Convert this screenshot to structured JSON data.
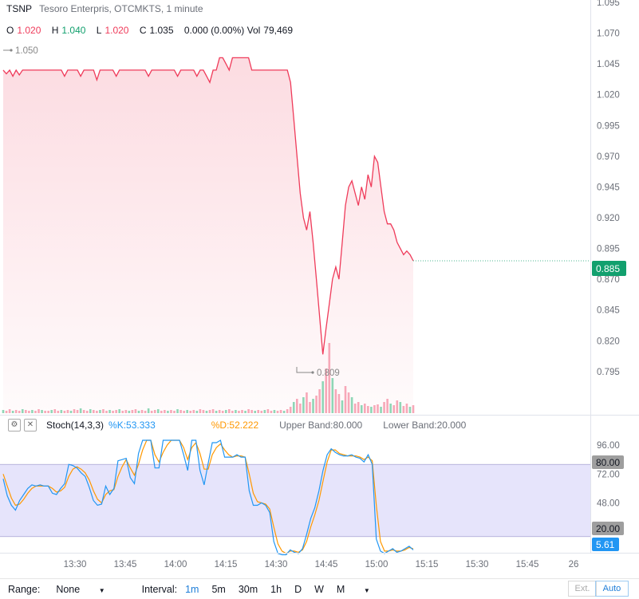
{
  "legend": {
    "symbol": "TSNP",
    "description": "Tesoro Enterpris, OTCMKTS, 1 minute"
  },
  "ohlc": {
    "o_label": "O",
    "o_value": "1.020",
    "h_label": "H",
    "h_value": "1.040",
    "l_label": "L",
    "l_value": "1.020",
    "c_label": "C",
    "c_value": "1.035",
    "change": "0.000 (0.00%)",
    "vol_label": "Vol",
    "vol_value": "79,469"
  },
  "annotations": {
    "high_marker": "1.050",
    "low_marker": "0.809"
  },
  "price_axis": {
    "ticks": [
      "1.095",
      "1.070",
      "1.045",
      "1.020",
      "0.995",
      "0.970",
      "0.945",
      "0.920",
      "0.895",
      "0.870",
      "0.845",
      "0.820",
      "0.795"
    ],
    "last_price": "0.885"
  },
  "stoch": {
    "title": "Stoch(14,3,3)",
    "k_label": "%K:53.333",
    "d_label": "%D:52.222",
    "upper_band": "Upper Band:80.000",
    "lower_band": "Lower Band:20.000",
    "axis_ticks": [
      "96.00",
      "72.00",
      "48.00"
    ],
    "upper_value": "80.00",
    "lower_value": "20.00",
    "current_value": "5.61"
  },
  "time_axis": {
    "ticks": [
      "13:30",
      "13:45",
      "14:00",
      "14:15",
      "14:30",
      "14:45",
      "15:00",
      "15:15",
      "15:30",
      "15:45",
      "26"
    ]
  },
  "bottom_bar": {
    "range_label": "Range:",
    "range_value": "None",
    "interval_label": "Interval:",
    "intervals": [
      "1m",
      "5m",
      "30m",
      "1h",
      "D",
      "W",
      "M"
    ],
    "ext_label": "Ext.",
    "auto_label": "Auto"
  },
  "colors": {
    "price_line": "#ef3b5a",
    "volume_up": "#8fd6b6",
    "volume_down": "#f7a8b8",
    "k_line": "#2196f3",
    "d_line": "#ff9800",
    "band_fill": "#e6e4fb",
    "last_price_badge": "#12a06e"
  },
  "chart_data": [
    {
      "type": "line",
      "title": "",
      "ylim": [
        0.78,
        1.095
      ],
      "series": [
        {
          "values": [
            1.04,
            1.037,
            1.04,
            1.035,
            1.04,
            1.036,
            1.04,
            1.04,
            1.04,
            1.04,
            1.04,
            1.04,
            1.04,
            1.04,
            1.04,
            1.04,
            1.04,
            1.04,
            1.04,
            1.035,
            1.04,
            1.04,
            1.04,
            1.04,
            1.035,
            1.04,
            1.04,
            1.04,
            1.04,
            1.032,
            1.04,
            1.04,
            1.04,
            1.04,
            1.04,
            1.035,
            1.04,
            1.04,
            1.04,
            1.04,
            1.04,
            1.04,
            1.04,
            1.04,
            1.04,
            1.035,
            1.04,
            1.04,
            1.04,
            1.04,
            1.04,
            1.04,
            1.04,
            1.04,
            1.035,
            1.04,
            1.04,
            1.04,
            1.04,
            1.04,
            1.035,
            1.04,
            1.04,
            1.035,
            1.03,
            1.04,
            1.04,
            1.05,
            1.05,
            1.045,
            1.04,
            1.05,
            1.05,
            1.05,
            1.05,
            1.05,
            1.05,
            1.04,
            1.04,
            1.04,
            1.04,
            1.04,
            1.04,
            1.04,
            1.04,
            1.04,
            1.04,
            1.04,
            1.04,
            1.03,
            1.0,
            0.97,
            0.94,
            0.92,
            0.91,
            0.925,
            0.9,
            0.87,
            0.84,
            0.809,
            0.83,
            0.85,
            0.87,
            0.88,
            0.87,
            0.9,
            0.93,
            0.945,
            0.95,
            0.94,
            0.93,
            0.945,
            0.935,
            0.955,
            0.945,
            0.97,
            0.965,
            0.945,
            0.925,
            0.915,
            0.915,
            0.91,
            0.9,
            0.895,
            0.89,
            0.893,
            0.89,
            0.885
          ]
        }
      ]
    },
    {
      "type": "line",
      "title": "",
      "ylim": [
        0,
        100
      ],
      "series": [
        {
          "name": "%K",
          "values": [
            68,
            54,
            46,
            42,
            50,
            55,
            60,
            63,
            62,
            63,
            62,
            62,
            56,
            55,
            60,
            64,
            80,
            79,
            77,
            73,
            70,
            61,
            50,
            46,
            47,
            62,
            55,
            60,
            83,
            84,
            85,
            69,
            64,
            89,
            100,
            100,
            100,
            77,
            77,
            100,
            100,
            100,
            100,
            100,
            88,
            75,
            100,
            100,
            75,
            63,
            81,
            98,
            98,
            100,
            86,
            86,
            86,
            88,
            86,
            86,
            58,
            46,
            46,
            48,
            46,
            40,
            16,
            6,
            5,
            5,
            9,
            7,
            6,
            10,
            22,
            35,
            44,
            58,
            75,
            88,
            93,
            90,
            88,
            87,
            87,
            88,
            86,
            85,
            82,
            88,
            80,
            18,
            8,
            6,
            8,
            10,
            7,
            8,
            10,
            12,
            9
          ]
        },
        {
          "name": "%D",
          "values": [
            72,
            62,
            52,
            46,
            47,
            51,
            56,
            60,
            62,
            62,
            62,
            62,
            60,
            57,
            58,
            61,
            70,
            76,
            78,
            76,
            73,
            67,
            58,
            51,
            48,
            55,
            58,
            59,
            70,
            78,
            84,
            77,
            71,
            80,
            92,
            100,
            100,
            88,
            82,
            90,
            96,
            100,
            100,
            100,
            94,
            84,
            94,
            98,
            89,
            76,
            76,
            88,
            94,
            97,
            92,
            88,
            86,
            87,
            87,
            86,
            72,
            56,
            49,
            48,
            47,
            43,
            28,
            14,
            8,
            6,
            8,
            8,
            7,
            9,
            16,
            28,
            38,
            50,
            66,
            82,
            92,
            92,
            89,
            88,
            87,
            87,
            87,
            86,
            84,
            86,
            83,
            46,
            16,
            8,
            8,
            9,
            8,
            8,
            9,
            11,
            10
          ]
        }
      ]
    }
  ]
}
